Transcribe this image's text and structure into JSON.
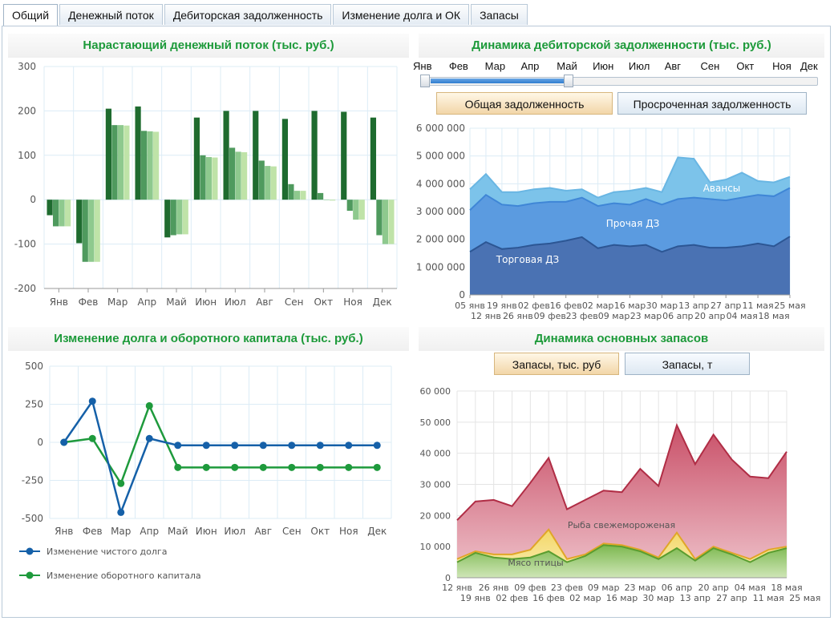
{
  "tabs": [
    {
      "label": "Общий",
      "active": true
    },
    {
      "label": "Денежный поток",
      "active": false
    },
    {
      "label": "Дебиторская задолженность",
      "active": false
    },
    {
      "label": "Изменение долга и ОК",
      "active": false
    },
    {
      "label": "Запасы",
      "active": false
    }
  ],
  "panels": {
    "cashflow_title": "Нарастающий денежный поток (тыс. руб.)",
    "receivables_title": "Динамика дебиторской задолженности (тыс. руб.)",
    "debt_title": "Изменение долга и оборотного капитала (тыс. руб.)",
    "inventory_title": "Динамика основных запасов"
  },
  "receivables_controls": {
    "months": [
      "Янв",
      "Фев",
      "Мар",
      "Апр",
      "Май",
      "Июн",
      "Июл",
      "Авг",
      "Сен",
      "Окт",
      "Ноя",
      "Дек"
    ],
    "slider_range": [
      "Янв",
      "Май"
    ],
    "total_button": "Общая задолженность",
    "overdue_button": "Просроченная задолженность",
    "selected": "total"
  },
  "inventory_controls": {
    "rub_button": "Запасы, тыс. руб",
    "ton_button": "Запасы, т",
    "selected": "rub"
  },
  "colors": {
    "title_green": "#1d9a3a",
    "bar_dark": "#1e6b2f",
    "bar_mid": "#4f9a5e",
    "bar_light": "#8ec98e",
    "bar_pale": "#bfe3a8",
    "net_debt_line": "#1560a8",
    "working_capital_line": "#1e9a3c",
    "trade": "#4a72b3",
    "other": "#5b9be0",
    "advances": "#7cc3ea",
    "fish": "#d97c8e",
    "poultry_line": "#e0a628",
    "green_area": "#6fb04d"
  },
  "chart_data": [
    {
      "id": "cashflow",
      "type": "bar",
      "categories": [
        "Янв",
        "Фев",
        "Мар",
        "Апр",
        "Май",
        "Июн",
        "Июл",
        "Авг",
        "Сен",
        "Окт",
        "Ноя",
        "Дек"
      ],
      "series": [
        {
          "values": [
            -35,
            -98,
            205,
            210,
            -85,
            185,
            200,
            200,
            182,
            200,
            198,
            185
          ]
        },
        {
          "values": [
            -60,
            -140,
            168,
            155,
            -80,
            100,
            117,
            88,
            35,
            15,
            -25,
            -80
          ]
        },
        {
          "values": [
            -60,
            -140,
            168,
            154,
            -78,
            96,
            108,
            76,
            20,
            -1,
            -45,
            -100
          ]
        },
        {
          "values": [
            -60,
            -140,
            167,
            153,
            -78,
            95,
            107,
            75,
            20,
            -2,
            -45,
            -100
          ]
        }
      ],
      "ylim": [
        -200,
        300
      ],
      "yticks": [
        -200,
        -100,
        0,
        100,
        200,
        300
      ]
    },
    {
      "id": "receivables",
      "type": "area",
      "x_top": [
        "05 янв",
        "19 янв",
        "02 фев",
        "16 фев",
        "02 мар",
        "16 мар",
        "30 мар",
        "13 апр",
        "27 апр",
        "11 мая",
        "25 мая"
      ],
      "x_bottom": [
        "12 янв",
        "26 янв",
        "09 фев",
        "23 фев",
        "09 мар",
        "23 мар",
        "06 апр",
        "20 апр",
        "04 мая",
        "18 мая"
      ],
      "series": [
        {
          "name": "Торговая ДЗ",
          "values": [
            1550000,
            1900000,
            1650000,
            1700000,
            1800000,
            1850000,
            1950000,
            2080000,
            1680000,
            1800000,
            1750000,
            1800000,
            1550000,
            1750000,
            1800000,
            1700000,
            1700000,
            1750000,
            1850000,
            1750000,
            2100000
          ]
        },
        {
          "name": "Прочая ДЗ",
          "values": [
            3050000,
            3600000,
            3250000,
            3200000,
            3300000,
            3350000,
            3350000,
            3500000,
            3200000,
            3300000,
            3250000,
            3450000,
            3250000,
            3450000,
            3500000,
            3450000,
            3400000,
            3500000,
            3600000,
            3550000,
            3850000
          ]
        },
        {
          "name": "Авансы",
          "values": [
            3800000,
            4350000,
            3700000,
            3700000,
            3800000,
            3850000,
            3750000,
            3800000,
            3500000,
            3700000,
            3750000,
            3850000,
            3700000,
            4950000,
            4900000,
            4050000,
            4150000,
            4400000,
            4100000,
            4050000,
            4250000
          ]
        }
      ],
      "ylim": [
        0,
        6000000
      ],
      "yticks": [
        "0",
        "1 000 000",
        "2 000 000",
        "3 000 000",
        "4 000 000",
        "5 000 000",
        "6 000 000"
      ]
    },
    {
      "id": "debt",
      "type": "line",
      "categories": [
        "Янв",
        "Фев",
        "Мар",
        "Апр",
        "Май",
        "Июн",
        "Июл",
        "Авг",
        "Сен",
        "Окт",
        "Ноя",
        "Дек"
      ],
      "series": [
        {
          "name": "Изменение чистого долга",
          "values": [
            0,
            270,
            -460,
            25,
            -20,
            -20,
            -20,
            -20,
            -20,
            -20,
            -20,
            -20
          ]
        },
        {
          "name": "Изменение оборотного капитала",
          "values": [
            0,
            25,
            -270,
            240,
            -165,
            -165,
            -165,
            -165,
            -165,
            -165,
            -165,
            -165
          ]
        }
      ],
      "ylim": [
        -500,
        500
      ],
      "yticks": [
        -500,
        -250,
        0,
        250,
        500
      ]
    },
    {
      "id": "inventory",
      "type": "area",
      "x_top": [
        "12 янв",
        "26 янв",
        "09 фев",
        "23 фев",
        "09 мар",
        "23 мар",
        "06 апр",
        "20 апр",
        "04 мая",
        "18 мая"
      ],
      "x_bottom": [
        "19 янв",
        "02 фев",
        "16 фев",
        "02 мар",
        "16 мар",
        "30 мар",
        "13 апр",
        "27 апр",
        "11 мая",
        "25 мая"
      ],
      "series": [
        {
          "name": "Рыба свежемороженая",
          "values": [
            18500,
            24500,
            25000,
            23000,
            30500,
            38500,
            22000,
            25000,
            28000,
            27500,
            35000,
            29500,
            49000,
            36500,
            46000,
            38000,
            32500,
            32000,
            40500
          ]
        },
        {
          "values": [
            6000,
            8500,
            7500,
            7500,
            9000,
            15500,
            6000,
            7500,
            11000,
            10500,
            9000,
            6500,
            14500,
            6000,
            10000,
            8000,
            6000,
            9000,
            10000
          ]
        },
        {
          "name": "Мясо птицы",
          "values": [
            5000,
            8000,
            6500,
            6000,
            6500,
            8500,
            5000,
            7000,
            10500,
            10000,
            8500,
            6000,
            9500,
            5500,
            9500,
            7500,
            5000,
            8000,
            9500
          ]
        }
      ],
      "ylim": [
        0,
        60000
      ],
      "yticks": [
        "0",
        "10 000",
        "20 000",
        "30 000",
        "40 000",
        "50 000",
        "60 000"
      ]
    }
  ]
}
